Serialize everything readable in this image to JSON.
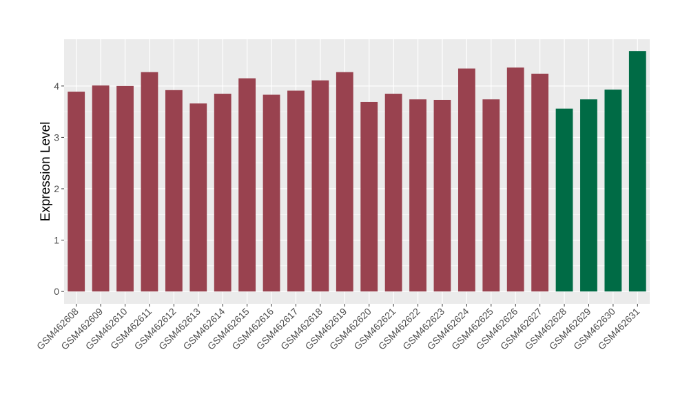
{
  "chart_data": {
    "type": "bar",
    "y_label": "Expression Level",
    "categories": [
      "GSM462608",
      "GSM462609",
      "GSM462610",
      "GSM462611",
      "GSM462612",
      "GSM462613",
      "GSM462614",
      "GSM462615",
      "GSM462616",
      "GSM462617",
      "GSM462618",
      "GSM462619",
      "GSM462620",
      "GSM462621",
      "GSM462622",
      "GSM462623",
      "GSM462624",
      "GSM462625",
      "GSM462626",
      "GSM462627",
      "GSM462628",
      "GSM462629",
      "GSM462630",
      "GSM462631"
    ],
    "values": [
      3.89,
      4.01,
      4.0,
      4.27,
      3.92,
      3.66,
      3.85,
      4.15,
      3.83,
      3.91,
      4.11,
      4.27,
      3.69,
      3.85,
      3.74,
      3.73,
      4.34,
      3.74,
      4.36,
      4.24,
      3.56,
      3.74,
      3.93,
      4.68
    ],
    "colors": [
      "#99424f",
      "#99424f",
      "#99424f",
      "#99424f",
      "#99424f",
      "#99424f",
      "#99424f",
      "#99424f",
      "#99424f",
      "#99424f",
      "#99424f",
      "#99424f",
      "#99424f",
      "#99424f",
      "#99424f",
      "#99424f",
      "#99424f",
      "#99424f",
      "#99424f",
      "#99424f",
      "#006b45",
      "#006b45",
      "#006b45",
      "#006b45"
    ],
    "ylim": [
      -0.24,
      4.91
    ],
    "yticks": [
      0,
      1,
      2,
      3,
      4
    ],
    "grid": true
  }
}
